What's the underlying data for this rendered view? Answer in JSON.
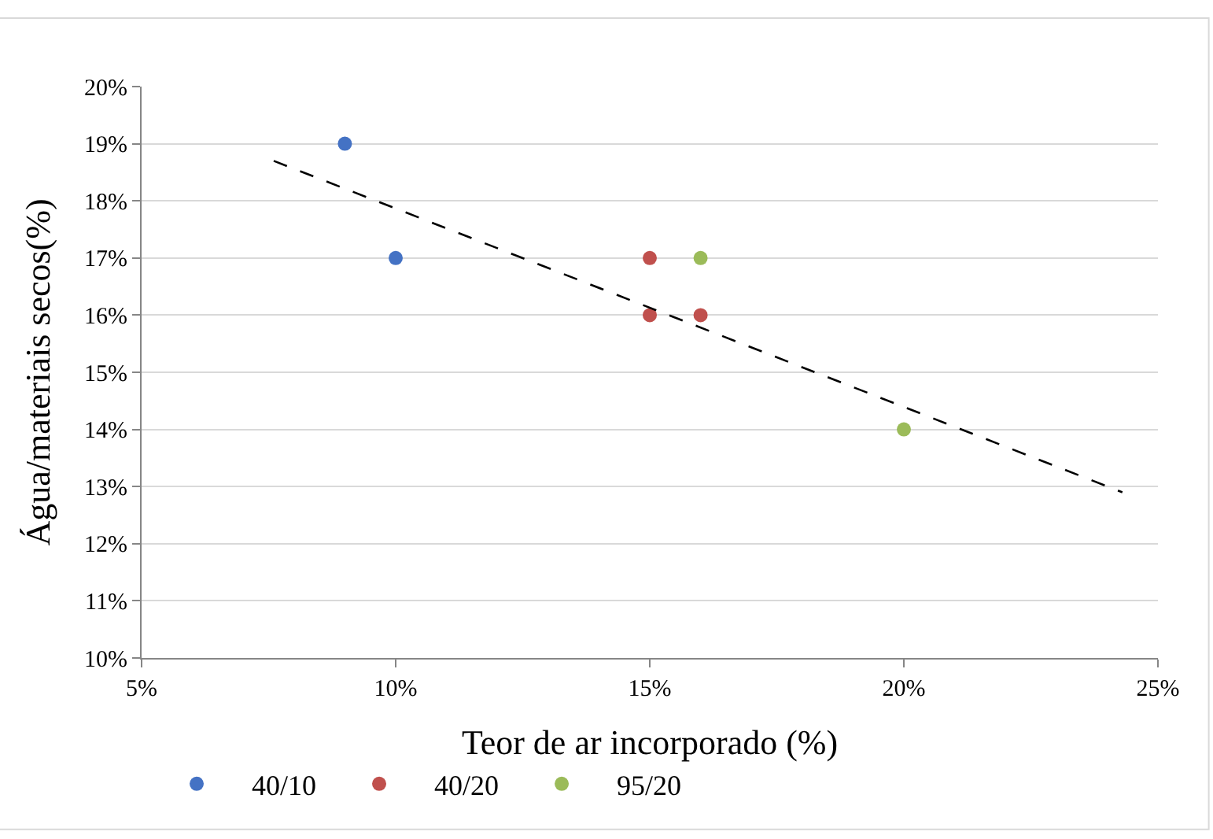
{
  "chart_data": {
    "type": "scatter",
    "xlabel": "Teor de ar incorporado (%)",
    "ylabel": "Água/materiais secos(%)",
    "xlim": [
      5,
      25
    ],
    "xticks": [
      {
        "value": 5,
        "label": "5%"
      },
      {
        "value": 10,
        "label": "10%"
      },
      {
        "value": 15,
        "label": "15%"
      },
      {
        "value": 20,
        "label": "20%"
      },
      {
        "value": 25,
        "label": "25%"
      }
    ],
    "ylim": [
      10,
      20
    ],
    "yticks": [
      {
        "value": 10,
        "label": "10%"
      },
      {
        "value": 11,
        "label": "11%"
      },
      {
        "value": 12,
        "label": "12%"
      },
      {
        "value": 13,
        "label": "13%"
      },
      {
        "value": 14,
        "label": "14%"
      },
      {
        "value": 15,
        "label": "15%"
      },
      {
        "value": 16,
        "label": "16%"
      },
      {
        "value": 17,
        "label": "17%"
      },
      {
        "value": 18,
        "label": "18%"
      },
      {
        "value": 19,
        "label": "19%"
      },
      {
        "value": 20,
        "label": "20%"
      }
    ],
    "grid": "y",
    "legend": "bottom",
    "marker": "circle",
    "series": [
      {
        "name": "40/10",
        "color": "#4472c4",
        "x": [
          9,
          10
        ],
        "values": [
          19,
          17
        ]
      },
      {
        "name": "40/20",
        "color": "#c0504d",
        "x": [
          15,
          15,
          16
        ],
        "values": [
          17,
          16,
          16
        ]
      },
      {
        "name": "95/20",
        "color": "#9bbb59",
        "x": [
          16,
          20
        ],
        "values": [
          17,
          14
        ]
      },
      {
        "type": "line",
        "color": "#000000",
        "line_style": "dashed",
        "marker": "none",
        "x": [
          7.6,
          24.3
        ],
        "values": [
          18.7,
          12.9
        ]
      }
    ]
  }
}
